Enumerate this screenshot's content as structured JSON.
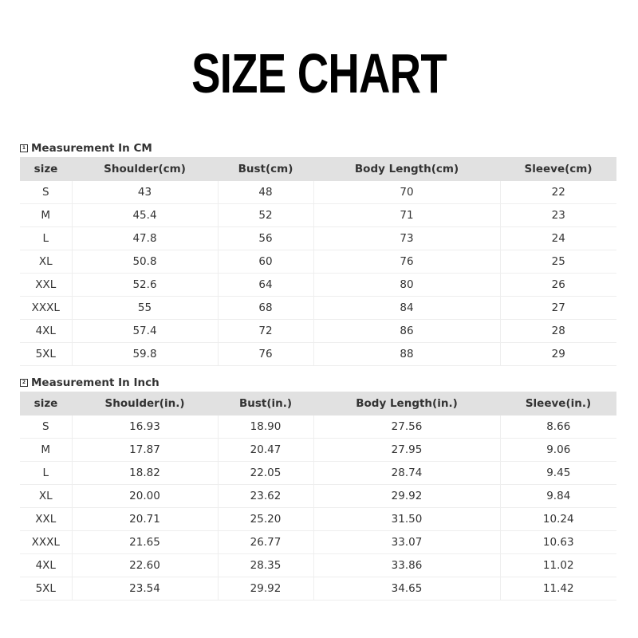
{
  "title": "SIZE CHART",
  "tables": [
    {
      "caption": "Measurement In CM",
      "icon": "1",
      "headers": [
        "size",
        "Shoulder(cm)",
        "Bust(cm)",
        "Body Length(cm)",
        "Sleeve(cm)"
      ],
      "rows": [
        [
          "S",
          "43",
          "48",
          "70",
          "22"
        ],
        [
          "M",
          "45.4",
          "52",
          "71",
          "23"
        ],
        [
          "L",
          "47.8",
          "56",
          "73",
          "24"
        ],
        [
          "XL",
          "50.8",
          "60",
          "76",
          "25"
        ],
        [
          "XXL",
          "52.6",
          "64",
          "80",
          "26"
        ],
        [
          "XXXL",
          "55",
          "68",
          "84",
          "27"
        ],
        [
          "4XL",
          "57.4",
          "72",
          "86",
          "28"
        ],
        [
          "5XL",
          "59.8",
          "76",
          "88",
          "29"
        ]
      ]
    },
    {
      "caption": "Measurement In Inch",
      "icon": "2",
      "headers": [
        "size",
        "Shoulder(in.)",
        "Bust(in.)",
        "Body Length(in.)",
        "Sleeve(in.)"
      ],
      "rows": [
        [
          "S",
          "16.93",
          "18.90",
          "27.56",
          "8.66"
        ],
        [
          "M",
          "17.87",
          "20.47",
          "27.95",
          "9.06"
        ],
        [
          "L",
          "18.82",
          "22.05",
          "28.74",
          "9.45"
        ],
        [
          "XL",
          "20.00",
          "23.62",
          "29.92",
          "9.84"
        ],
        [
          "XXL",
          "20.71",
          "25.20",
          "31.50",
          "10.24"
        ],
        [
          "XXXL",
          "21.65",
          "26.77",
          "33.07",
          "10.63"
        ],
        [
          "4XL",
          "22.60",
          "28.35",
          "33.86",
          "11.02"
        ],
        [
          "5XL",
          "23.54",
          "29.92",
          "34.65",
          "11.42"
        ]
      ]
    }
  ]
}
